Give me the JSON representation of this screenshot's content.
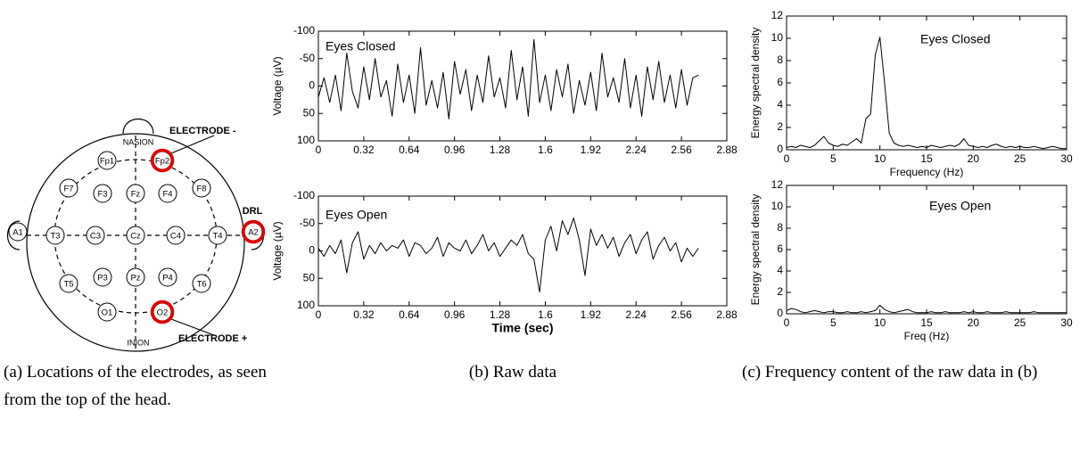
{
  "diagram": {
    "electrodes": [
      {
        "label": "Fp1"
      },
      {
        "label": "Fp2",
        "highlight": true
      },
      {
        "label": "F7"
      },
      {
        "label": "F3"
      },
      {
        "label": "Fz"
      },
      {
        "label": "F4"
      },
      {
        "label": "F8"
      },
      {
        "label": "A1"
      },
      {
        "label": "T3"
      },
      {
        "label": "C3"
      },
      {
        "label": "Cz"
      },
      {
        "label": "C4"
      },
      {
        "label": "T4"
      },
      {
        "label": "A2",
        "highlight": true
      },
      {
        "label": "T5"
      },
      {
        "label": "P3"
      },
      {
        "label": "Pz"
      },
      {
        "label": "P4"
      },
      {
        "label": "T6"
      },
      {
        "label": "O1"
      },
      {
        "label": "O2",
        "highlight": true
      }
    ],
    "labels": {
      "nasion": "NASION",
      "inion": "INION",
      "electrode_minus": "ELECTRODE -",
      "electrode_plus": "ELECTRODE +",
      "drl": "DRL"
    }
  },
  "captions": {
    "a": "(a) Locations of the electrodes, as seen from the top of the head.",
    "b": "(b) Raw data",
    "c": "(c) Frequency content of the raw data in (b)"
  },
  "chart_data": [
    {
      "type": "line",
      "annotation": "Eyes Closed",
      "ylabel": "Voltage (µV)",
      "color": "#000000",
      "invert_y": true,
      "x": [
        0,
        0.04,
        0.08,
        0.12,
        0.16,
        0.2,
        0.24,
        0.28,
        0.32,
        0.36,
        0.4,
        0.44,
        0.48,
        0.52,
        0.56,
        0.6,
        0.64,
        0.68,
        0.72,
        0.76,
        0.8,
        0.84,
        0.88,
        0.92,
        0.96,
        1,
        1.04,
        1.08,
        1.12,
        1.16,
        1.2,
        1.24,
        1.28,
        1.32,
        1.36,
        1.4,
        1.44,
        1.48,
        1.52,
        1.56,
        1.6,
        1.64,
        1.68,
        1.72,
        1.76,
        1.8,
        1.84,
        1.88,
        1.92,
        1.96,
        2,
        2.04,
        2.08,
        2.12,
        2.16,
        2.2,
        2.24,
        2.28,
        2.32,
        2.36,
        2.4,
        2.44,
        2.48,
        2.52,
        2.56,
        2.6,
        2.64,
        2.68
      ],
      "values": [
        20,
        -15,
        30,
        -20,
        45,
        -60,
        10,
        40,
        -35,
        25,
        -50,
        20,
        -10,
        55,
        -40,
        30,
        -20,
        50,
        -70,
        35,
        -10,
        40,
        -25,
        60,
        -45,
        15,
        -30,
        45,
        -20,
        30,
        -55,
        20,
        -15,
        40,
        -65,
        25,
        -35,
        55,
        -85,
        30,
        -20,
        45,
        -30,
        20,
        -40,
        50,
        -10,
        35,
        -25,
        45,
        -60,
        20,
        -15,
        30,
        -50,
        40,
        -20,
        55,
        -35,
        25,
        -45,
        30,
        -20,
        40,
        -30,
        35,
        -15,
        -20
      ],
      "xlim": [
        0,
        2.88
      ],
      "ylim": [
        -100,
        100
      ],
      "xticks": [
        0,
        0.32,
        0.64,
        0.96,
        1.28,
        1.6,
        1.92,
        2.24,
        2.56,
        2.88
      ],
      "yticks": [
        -100,
        -50,
        0,
        50,
        100
      ]
    },
    {
      "type": "line",
      "annotation": "Eyes Open",
      "ylabel": "Voltage (µV)",
      "xlabel": "Time (sec)",
      "color": "#000000",
      "invert_y": true,
      "x": [
        0,
        0.04,
        0.08,
        0.12,
        0.16,
        0.2,
        0.24,
        0.28,
        0.32,
        0.36,
        0.4,
        0.44,
        0.48,
        0.52,
        0.56,
        0.6,
        0.64,
        0.68,
        0.72,
        0.76,
        0.8,
        0.84,
        0.88,
        0.92,
        0.96,
        1,
        1.04,
        1.08,
        1.12,
        1.16,
        1.2,
        1.24,
        1.28,
        1.32,
        1.36,
        1.4,
        1.44,
        1.48,
        1.52,
        1.56,
        1.6,
        1.64,
        1.68,
        1.72,
        1.76,
        1.8,
        1.84,
        1.88,
        1.92,
        1.96,
        2,
        2.04,
        2.08,
        2.12,
        2.16,
        2.2,
        2.24,
        2.28,
        2.32,
        2.36,
        2.4,
        2.44,
        2.48,
        2.52,
        2.56,
        2.6,
        2.64,
        2.68
      ],
      "values": [
        -5,
        10,
        -10,
        5,
        -20,
        40,
        -15,
        -35,
        15,
        -10,
        5,
        -15,
        0,
        -10,
        -5,
        -20,
        10,
        -15,
        -10,
        5,
        -5,
        -25,
        10,
        -15,
        -5,
        0,
        -20,
        5,
        -10,
        -30,
        0,
        -15,
        10,
        -5,
        -20,
        -10,
        -30,
        5,
        15,
        75,
        -20,
        -45,
        0,
        -55,
        -30,
        -60,
        -20,
        45,
        -40,
        -10,
        -30,
        -5,
        -25,
        10,
        -15,
        -30,
        5,
        -20,
        -35,
        15,
        -10,
        -25,
        0,
        -15,
        20,
        -5,
        10,
        -5
      ],
      "xlim": [
        0,
        2.88
      ],
      "ylim": [
        -100,
        100
      ],
      "xticks": [
        0,
        0.32,
        0.64,
        0.96,
        1.28,
        1.6,
        1.92,
        2.24,
        2.56,
        2.88
      ],
      "yticks": [
        -100,
        -50,
        0,
        50,
        100
      ]
    },
    {
      "type": "line",
      "annotation": "Eyes Closed",
      "ylabel": "Energy spectral density",
      "xlabel": "Frequency (Hz)",
      "color": "#000000",
      "x": [
        0,
        0.5,
        1,
        1.5,
        2,
        2.5,
        3,
        3.5,
        4,
        4.5,
        5,
        5.5,
        6,
        6.5,
        7,
        7.5,
        8,
        8.5,
        9,
        9.5,
        10,
        10.5,
        11,
        11.5,
        12,
        12.5,
        13,
        13.5,
        14,
        14.5,
        15,
        15.5,
        16,
        16.5,
        17,
        17.5,
        18,
        18.5,
        19,
        19.5,
        20,
        20.5,
        21,
        21.5,
        22,
        22.5,
        23,
        23.5,
        24,
        24.5,
        25,
        25.5,
        26,
        26.5,
        27,
        27.5,
        28,
        28.5,
        29,
        29.5,
        30
      ],
      "values": [
        0.2,
        0.3,
        0.2,
        0.4,
        0.3,
        0.2,
        0.4,
        0.8,
        1.2,
        0.6,
        0.4,
        0.3,
        0.5,
        0.4,
        0.7,
        1.0,
        0.6,
        2.8,
        3.2,
        8.5,
        10.1,
        6,
        1.5,
        0.6,
        0.4,
        0.3,
        0.4,
        0.3,
        0.2,
        0.3,
        0.2,
        0.4,
        0.3,
        0.2,
        0.3,
        0.4,
        0.3,
        0.5,
        1.0,
        0.4,
        0.3,
        0.2,
        0.3,
        0.2,
        0.4,
        0.5,
        0.3,
        0.2,
        0.3,
        0.2,
        0.3,
        0.2,
        0.2,
        0.3,
        0.2,
        0.1,
        0.2,
        0.3,
        0.2,
        0.1,
        0.1
      ],
      "xlim": [
        0,
        30
      ],
      "ylim": [
        0,
        12
      ],
      "xticks": [
        0,
        5,
        10,
        15,
        20,
        25,
        30
      ],
      "yticks": [
        0,
        2,
        4,
        6,
        8,
        10,
        12
      ]
    },
    {
      "type": "line",
      "annotation": "Eyes Open",
      "ylabel": "Energy spectral density",
      "xlabel": "Freq (Hz)",
      "color": "#000000",
      "x": [
        0,
        0.5,
        1,
        1.5,
        2,
        2.5,
        3,
        3.5,
        4,
        4.5,
        5,
        5.5,
        6,
        6.5,
        7,
        7.5,
        8,
        8.5,
        9,
        9.5,
        10,
        10.5,
        11,
        11.5,
        12,
        12.5,
        13,
        13.5,
        14,
        14.5,
        15,
        15.5,
        16,
        16.5,
        17,
        17.5,
        18,
        18.5,
        19,
        19.5,
        20,
        20.5,
        21,
        21.5,
        22,
        22.5,
        23,
        23.5,
        24,
        24.5,
        25,
        25.5,
        26,
        26.5,
        27,
        27.5,
        28,
        28.5,
        29,
        29.5,
        30
      ],
      "values": [
        0.3,
        0.5,
        0.4,
        0.2,
        0.1,
        0.2,
        0.3,
        0.2,
        0.1,
        0.2,
        0.2,
        0.1,
        0.1,
        0.2,
        0.1,
        0.1,
        0.2,
        0.1,
        0.2,
        0.3,
        0.8,
        0.4,
        0.2,
        0.1,
        0.2,
        0.3,
        0.4,
        0.2,
        0.1,
        0.1,
        0.1,
        0.2,
        0.1,
        0.1,
        0.2,
        0.1,
        0.1,
        0.1,
        0.2,
        0.1,
        0.2,
        0.1,
        0.1,
        0.2,
        0.1,
        0.1,
        0.1,
        0.2,
        0.1,
        0.1,
        0.1,
        0.1,
        0.1,
        0.2,
        0.1,
        0.1,
        0.1,
        0.1,
        0.1,
        0.1,
        0.1
      ],
      "xlim": [
        0,
        30
      ],
      "ylim": [
        0,
        12
      ],
      "xticks": [
        0,
        5,
        10,
        15,
        20,
        25,
        30
      ],
      "yticks": [
        0,
        2,
        4,
        6,
        8,
        10,
        12
      ]
    }
  ]
}
